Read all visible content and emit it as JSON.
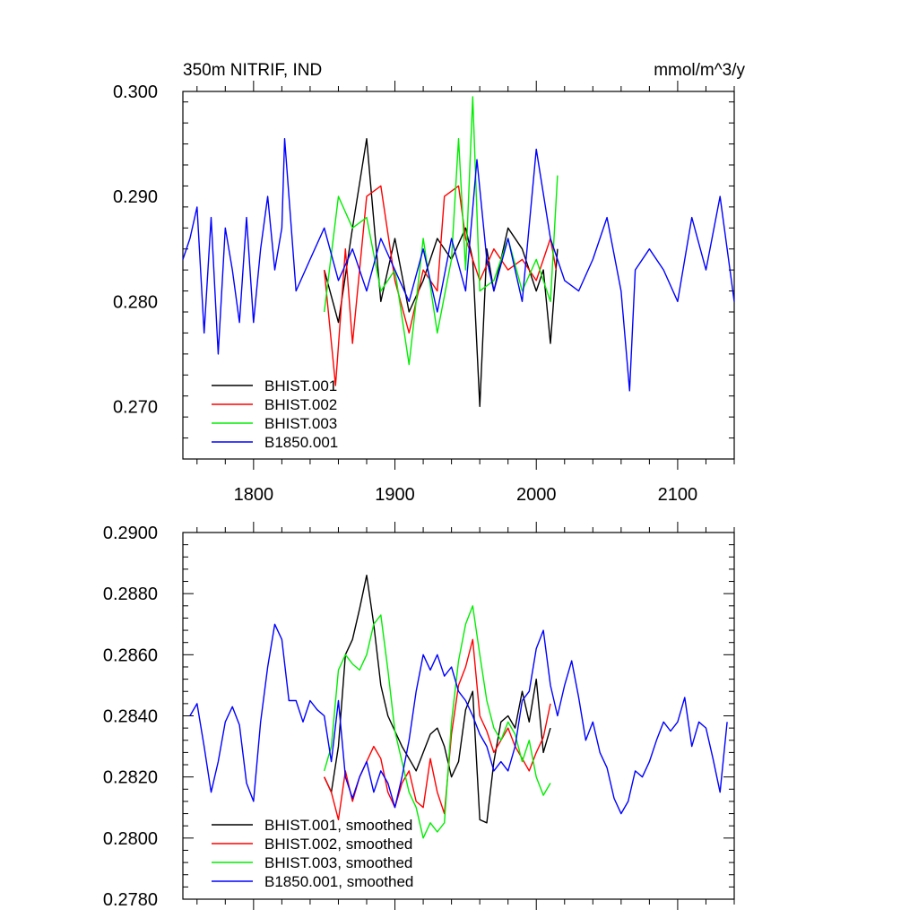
{
  "chart_data": [
    {
      "type": "line",
      "title": "350m NITRIF, IND",
      "units": "mmol/m^3/y",
      "xlim": [
        1750,
        2140
      ],
      "ylim": [
        0.265,
        0.3
      ],
      "xticks": [
        1800,
        1900,
        2000,
        2100
      ],
      "xtick_labels": [
        "1800",
        "1900",
        "2000",
        "2100"
      ],
      "yticks": [
        0.27,
        0.28,
        0.29,
        0.3
      ],
      "ytick_labels": [
        "0.270",
        "0.280",
        "0.290",
        "0.300"
      ],
      "legend_position": "lower-left",
      "series": [
        {
          "name": "BHIST.001",
          "color": "#000000",
          "x": [
            1850,
            1860,
            1870,
            1880,
            1890,
            1900,
            1910,
            1920,
            1930,
            1940,
            1950,
            1955,
            1960,
            1965,
            1970,
            1980,
            1990,
            2000,
            2005,
            2010,
            2015
          ],
          "y": [
            0.283,
            0.278,
            0.287,
            0.2955,
            0.28,
            0.286,
            0.279,
            0.282,
            0.286,
            0.284,
            0.287,
            0.284,
            0.27,
            0.285,
            0.281,
            0.287,
            0.285,
            0.281,
            0.283,
            0.276,
            0.285
          ]
        },
        {
          "name": "BHIST.002",
          "color": "#ff0000",
          "x": [
            1850,
            1858,
            1865,
            1870,
            1880,
            1890,
            1900,
            1910,
            1920,
            1930,
            1935,
            1945,
            1950,
            1960,
            1970,
            1980,
            1990,
            2000,
            2010,
            2014
          ],
          "y": [
            0.283,
            0.272,
            0.285,
            0.276,
            0.29,
            0.291,
            0.282,
            0.277,
            0.283,
            0.281,
            0.29,
            0.291,
            0.286,
            0.282,
            0.285,
            0.283,
            0.284,
            0.282,
            0.286,
            0.283
          ]
        },
        {
          "name": "BHIST.003",
          "color": "#00ee00",
          "x": [
            1850,
            1860,
            1870,
            1880,
            1890,
            1900,
            1910,
            1920,
            1930,
            1940,
            1945,
            1950,
            1955,
            1960,
            1970,
            1980,
            1990,
            2000,
            2010,
            2015
          ],
          "y": [
            0.279,
            0.29,
            0.287,
            0.288,
            0.281,
            0.283,
            0.274,
            0.286,
            0.277,
            0.284,
            0.2955,
            0.283,
            0.2995,
            0.281,
            0.282,
            0.286,
            0.281,
            0.284,
            0.28,
            0.292
          ]
        },
        {
          "name": "B1850.001",
          "color": "#0000ff",
          "x": [
            1750,
            1755,
            1760,
            1765,
            1770,
            1775,
            1780,
            1785,
            1790,
            1795,
            1800,
            1805,
            1810,
            1815,
            1820,
            1822,
            1830,
            1840,
            1850,
            1860,
            1870,
            1880,
            1890,
            1900,
            1910,
            1920,
            1930,
            1940,
            1950,
            1958,
            1965,
            1970,
            1980,
            1990,
            2000,
            2010,
            2020,
            2030,
            2040,
            2050,
            2060,
            2066,
            2070,
            2080,
            2090,
            2100,
            2110,
            2120,
            2130,
            2140
          ],
          "y": [
            0.284,
            0.286,
            0.289,
            0.277,
            0.288,
            0.275,
            0.287,
            0.283,
            0.278,
            0.288,
            0.278,
            0.285,
            0.29,
            0.283,
            0.287,
            0.2955,
            0.281,
            0.284,
            0.287,
            0.282,
            0.285,
            0.281,
            0.286,
            0.283,
            0.28,
            0.285,
            0.279,
            0.286,
            0.281,
            0.2935,
            0.284,
            0.281,
            0.286,
            0.28,
            0.2945,
            0.286,
            0.282,
            0.281,
            0.284,
            0.288,
            0.281,
            0.2715,
            0.283,
            0.285,
            0.283,
            0.28,
            0.288,
            0.283,
            0.29,
            0.28
          ]
        }
      ]
    },
    {
      "type": "line",
      "xlim": [
        1750,
        2140
      ],
      "ylim": [
        0.278,
        0.29
      ],
      "xticks": [
        1800,
        1900,
        2000,
        2100
      ],
      "yticks": [
        0.278,
        0.28,
        0.282,
        0.284,
        0.286,
        0.288,
        0.29
      ],
      "ytick_labels": [
        "0.2780",
        "0.2800",
        "0.2820",
        "0.2840",
        "0.2860",
        "0.2880",
        "0.2900"
      ],
      "legend_position": "lower-left",
      "series": [
        {
          "name": "BHIST.001, smoothed",
          "color": "#000000",
          "x": [
            1850,
            1855,
            1860,
            1865,
            1870,
            1875,
            1880,
            1885,
            1890,
            1895,
            1900,
            1905,
            1910,
            1915,
            1920,
            1925,
            1930,
            1935,
            1940,
            1945,
            1950,
            1955,
            1960,
            1965,
            1970,
            1975,
            1980,
            1985,
            1990,
            1995,
            2000,
            2005,
            2010
          ],
          "y": [
            0.282,
            0.2815,
            0.283,
            0.286,
            0.2865,
            0.2875,
            0.2886,
            0.287,
            0.285,
            0.284,
            0.2835,
            0.283,
            0.2826,
            0.2822,
            0.2828,
            0.2834,
            0.2836,
            0.283,
            0.282,
            0.2825,
            0.2842,
            0.2848,
            0.2806,
            0.2805,
            0.2825,
            0.2838,
            0.284,
            0.2836,
            0.2848,
            0.2838,
            0.2852,
            0.2828,
            0.2836
          ]
        },
        {
          "name": "BHIST.002, smoothed",
          "color": "#ff0000",
          "x": [
            1850,
            1855,
            1860,
            1865,
            1870,
            1875,
            1880,
            1885,
            1890,
            1895,
            1900,
            1905,
            1910,
            1915,
            1920,
            1925,
            1930,
            1935,
            1940,
            1945,
            1950,
            1955,
            1960,
            1965,
            1970,
            1975,
            1980,
            1985,
            1990,
            1995,
            2000,
            2005,
            2010
          ],
          "y": [
            0.282,
            0.2815,
            0.2806,
            0.2822,
            0.2812,
            0.282,
            0.2825,
            0.283,
            0.2826,
            0.2815,
            0.281,
            0.2818,
            0.2822,
            0.2812,
            0.281,
            0.2826,
            0.2815,
            0.2808,
            0.2834,
            0.285,
            0.2856,
            0.2865,
            0.284,
            0.2835,
            0.2828,
            0.2832,
            0.2836,
            0.283,
            0.2826,
            0.2822,
            0.2828,
            0.2833,
            0.2844
          ]
        },
        {
          "name": "BHIST.003, smoothed",
          "color": "#00ee00",
          "x": [
            1850,
            1855,
            1860,
            1865,
            1870,
            1875,
            1880,
            1885,
            1890,
            1895,
            1900,
            1905,
            1910,
            1915,
            1920,
            1925,
            1930,
            1935,
            1940,
            1945,
            1950,
            1955,
            1960,
            1965,
            1970,
            1975,
            1980,
            1985,
            1990,
            1995,
            2000,
            2005,
            2010
          ],
          "y": [
            0.2822,
            0.283,
            0.2855,
            0.286,
            0.2857,
            0.2855,
            0.286,
            0.287,
            0.2873,
            0.2855,
            0.2835,
            0.2825,
            0.2815,
            0.281,
            0.28,
            0.2805,
            0.2802,
            0.2805,
            0.2838,
            0.2858,
            0.287,
            0.2876,
            0.286,
            0.2845,
            0.2836,
            0.2832,
            0.2838,
            0.2834,
            0.2825,
            0.2832,
            0.282,
            0.2814,
            0.2818
          ]
        },
        {
          "name": "B1850.001, smoothed",
          "color": "#0000ff",
          "x": [
            1755,
            1760,
            1765,
            1770,
            1775,
            1780,
            1785,
            1790,
            1795,
            1800,
            1805,
            1810,
            1815,
            1820,
            1825,
            1830,
            1835,
            1840,
            1845,
            1850,
            1855,
            1860,
            1865,
            1870,
            1875,
            1880,
            1885,
            1890,
            1895,
            1900,
            1905,
            1910,
            1915,
            1920,
            1925,
            1930,
            1935,
            1940,
            1945,
            1950,
            1955,
            1960,
            1965,
            1970,
            1975,
            1980,
            1985,
            1990,
            1995,
            2000,
            2005,
            2010,
            2015,
            2020,
            2025,
            2030,
            2035,
            2040,
            2045,
            2050,
            2055,
            2060,
            2065,
            2070,
            2075,
            2080,
            2085,
            2090,
            2095,
            2100,
            2105,
            2110,
            2115,
            2120,
            2125,
            2130,
            2135
          ],
          "y": [
            0.284,
            0.2844,
            0.283,
            0.2815,
            0.2825,
            0.2838,
            0.2843,
            0.2837,
            0.2818,
            0.2812,
            0.2838,
            0.2856,
            0.287,
            0.2865,
            0.2845,
            0.2845,
            0.2838,
            0.2845,
            0.2842,
            0.284,
            0.2825,
            0.2845,
            0.282,
            0.2813,
            0.282,
            0.2825,
            0.2815,
            0.2822,
            0.2818,
            0.281,
            0.282,
            0.2832,
            0.2848,
            0.286,
            0.2855,
            0.286,
            0.2853,
            0.2856,
            0.2848,
            0.2845,
            0.284,
            0.2834,
            0.283,
            0.2822,
            0.2825,
            0.2822,
            0.283,
            0.2845,
            0.2848,
            0.2862,
            0.2868,
            0.285,
            0.284,
            0.285,
            0.2858,
            0.2846,
            0.2832,
            0.2838,
            0.2828,
            0.2823,
            0.2813,
            0.2808,
            0.2812,
            0.2822,
            0.282,
            0.2825,
            0.2832,
            0.2838,
            0.2835,
            0.2838,
            0.2846,
            0.283,
            0.2838,
            0.2836,
            0.2826,
            0.2815,
            0.2838
          ]
        }
      ]
    }
  ]
}
